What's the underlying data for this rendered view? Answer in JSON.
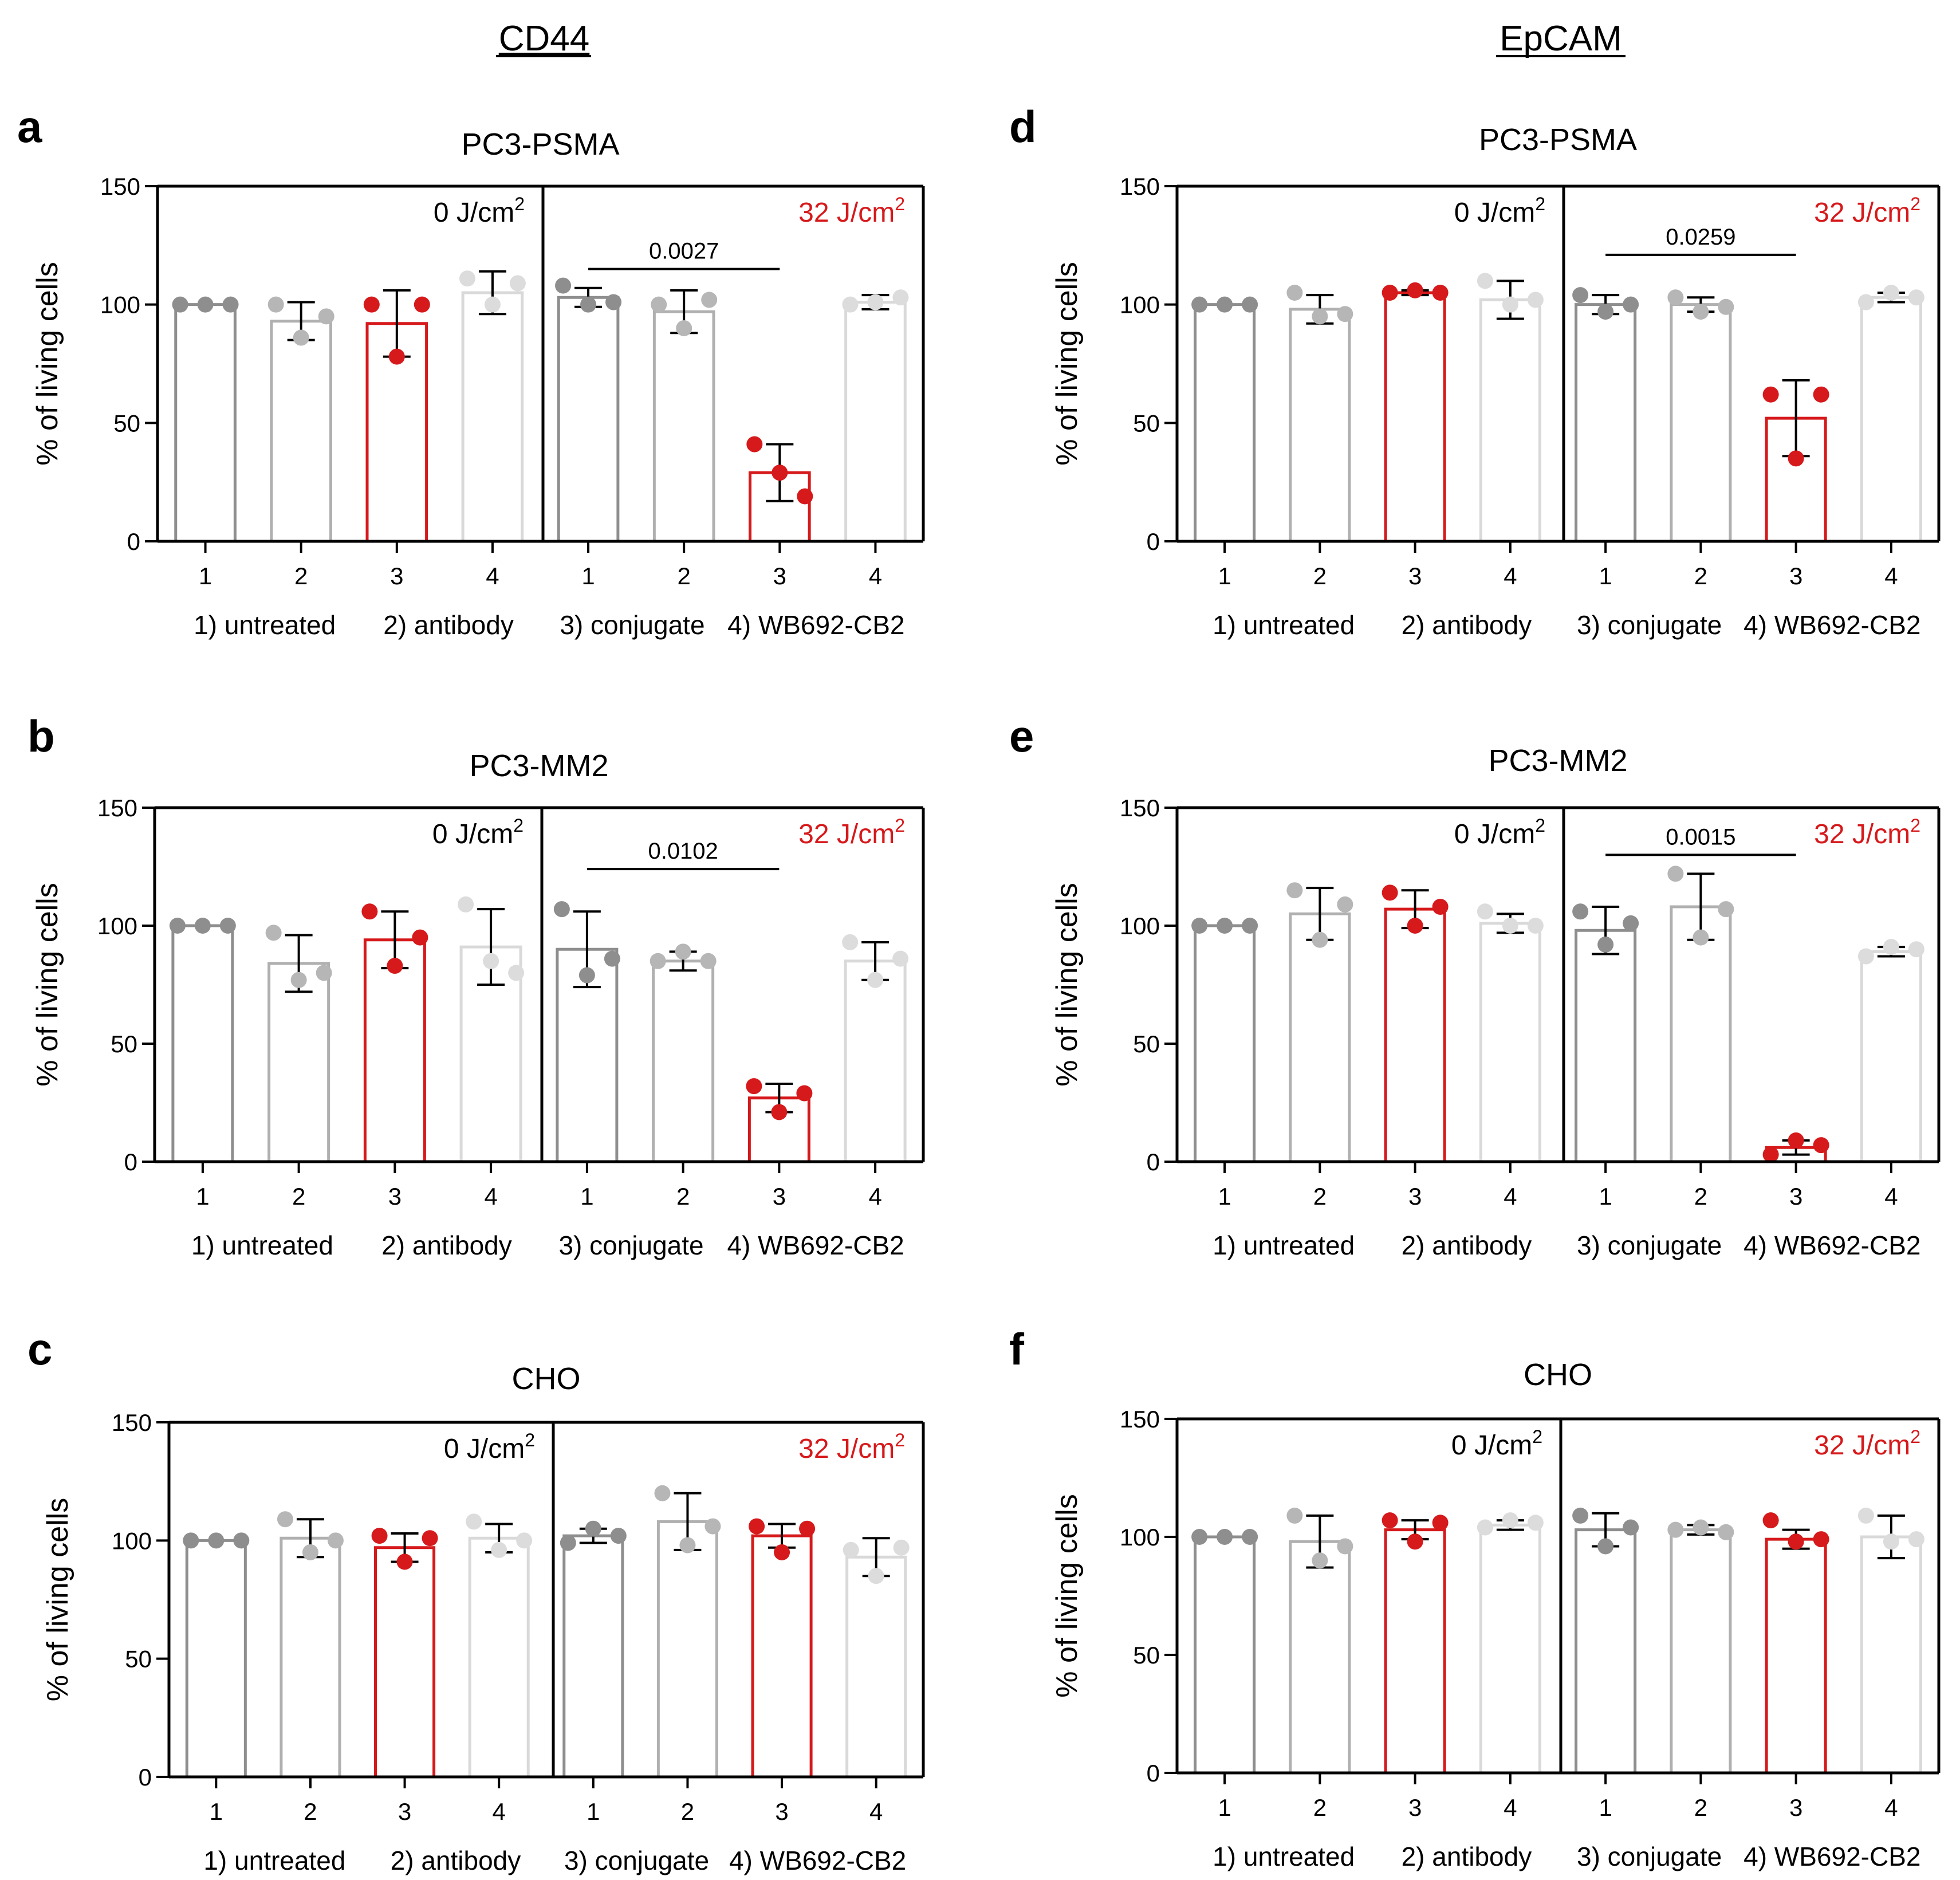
{
  "figure": {
    "column_headers": [
      "CD44",
      "EpCAM"
    ],
    "x_tick_labels": [
      "1",
      "2",
      "3",
      "4"
    ],
    "legend_text": [
      "1) untreated",
      "2) antibody",
      "3) conjugate",
      "4) WB692-CB2"
    ],
    "superscript": "2"
  },
  "colors": {
    "axis": "#000000",
    "conjugate": "#d6191b",
    "untreated": "#8e8e8e",
    "antibody": "#b0b0b0",
    "wb692": "#d9d9d9"
  },
  "chart_data": [
    {
      "type": "bar",
      "panel": "a",
      "title": "PC3-PSMA",
      "ylabel": "% of living cells",
      "ylim": [
        0,
        150
      ],
      "yticks": [
        0,
        50,
        100,
        150
      ],
      "categories": [
        "1",
        "2",
        "3",
        "4"
      ],
      "groups": [
        {
          "label": "0 J/cm",
          "unit_color": "#000000",
          "means": [
            100,
            93,
            92,
            105
          ],
          "sd": [
            0,
            8,
            14,
            9
          ],
          "points": [
            [
              100,
              100,
              100
            ],
            [
              100,
              86,
              95
            ],
            [
              100,
              78,
              100
            ],
            [
              111,
              100,
              109
            ]
          ]
        },
        {
          "label": "32 J/cm",
          "unit_color": "#d6191b",
          "means": [
            103,
            97,
            29,
            101
          ],
          "sd": [
            4,
            9,
            12,
            3
          ],
          "points": [
            [
              108,
              100,
              101
            ],
            [
              100,
              90,
              102
            ],
            [
              41,
              29,
              19
            ],
            [
              100,
              101,
              103
            ]
          ]
        }
      ],
      "annotation": {
        "text": "0.0027",
        "from_bar": 1,
        "to_bar": 3,
        "y": 115
      }
    },
    {
      "type": "bar",
      "panel": "b",
      "title": "PC3-MM2",
      "ylabel": "% of living cells",
      "ylim": [
        0,
        150
      ],
      "yticks": [
        0,
        50,
        100,
        150
      ],
      "categories": [
        "1",
        "2",
        "3",
        "4"
      ],
      "groups": [
        {
          "label": "0 J/cm",
          "unit_color": "#000000",
          "means": [
            100,
            84,
            94,
            91
          ],
          "sd": [
            0,
            12,
            12,
            16
          ],
          "points": [
            [
              100,
              100,
              100
            ],
            [
              97,
              77,
              80
            ],
            [
              106,
              83,
              95
            ],
            [
              109,
              85,
              80
            ]
          ]
        },
        {
          "label": "32 J/cm",
          "unit_color": "#d6191b",
          "means": [
            90,
            85,
            27,
            85
          ],
          "sd": [
            16,
            4,
            6,
            8
          ],
          "points": [
            [
              107,
              79,
              86
            ],
            [
              85,
              89,
              85
            ],
            [
              32,
              21,
              29
            ],
            [
              93,
              77,
              86
            ]
          ]
        }
      ],
      "annotation": {
        "text": "0.0102",
        "from_bar": 1,
        "to_bar": 3,
        "y": 124
      }
    },
    {
      "type": "bar",
      "panel": "c",
      "title": "CHO",
      "ylabel": "% of living cells",
      "ylim": [
        0,
        150
      ],
      "yticks": [
        0,
        50,
        100,
        150
      ],
      "categories": [
        "1",
        "2",
        "3",
        "4"
      ],
      "groups": [
        {
          "label": "0 J/cm",
          "unit_color": "#000000",
          "means": [
            100,
            101,
            97,
            101
          ],
          "sd": [
            0,
            8,
            6,
            6
          ],
          "points": [
            [
              100,
              100,
              100
            ],
            [
              109,
              95,
              100
            ],
            [
              102,
              91,
              101
            ],
            [
              108,
              96,
              100
            ]
          ]
        },
        {
          "label": "32 J/cm",
          "unit_color": "#d6191b",
          "means": [
            102,
            108,
            102,
            93
          ],
          "sd": [
            3,
            12,
            5,
            8
          ],
          "points": [
            [
              99,
              105,
              102
            ],
            [
              120,
              98,
              106
            ],
            [
              106,
              95,
              105
            ],
            [
              96,
              85,
              97
            ]
          ]
        }
      ]
    },
    {
      "type": "bar",
      "panel": "d",
      "title": "PC3-PSMA",
      "ylabel": "% of living cells",
      "ylim": [
        0,
        150
      ],
      "yticks": [
        0,
        50,
        100,
        150
      ],
      "categories": [
        "1",
        "2",
        "3",
        "4"
      ],
      "groups": [
        {
          "label": "0 J/cm",
          "unit_color": "#000000",
          "means": [
            100,
            98,
            105,
            102
          ],
          "sd": [
            0,
            6,
            1,
            8
          ],
          "points": [
            [
              100,
              100,
              100
            ],
            [
              105,
              95,
              96
            ],
            [
              105,
              106,
              105
            ],
            [
              110,
              100,
              102
            ]
          ]
        },
        {
          "label": "32 J/cm",
          "unit_color": "#d6191b",
          "means": [
            100,
            100,
            52,
            103
          ],
          "sd": [
            4,
            3,
            16,
            2
          ],
          "points": [
            [
              104,
              97,
              100
            ],
            [
              103,
              97,
              99
            ],
            [
              62,
              35,
              62
            ],
            [
              101,
              105,
              103
            ]
          ]
        }
      ],
      "annotation": {
        "text": "0.0259",
        "from_bar": 1,
        "to_bar": 3,
        "y": 121
      }
    },
    {
      "type": "bar",
      "panel": "e",
      "title": "PC3-MM2",
      "ylabel": "% of living cells",
      "ylim": [
        0,
        150
      ],
      "yticks": [
        0,
        50,
        100,
        150
      ],
      "categories": [
        "1",
        "2",
        "3",
        "4"
      ],
      "groups": [
        {
          "label": "0 J/cm",
          "unit_color": "#000000",
          "means": [
            100,
            105,
            107,
            101
          ],
          "sd": [
            0,
            11,
            8,
            4
          ],
          "points": [
            [
              100,
              100,
              100
            ],
            [
              115,
              94,
              109
            ],
            [
              114,
              100,
              108
            ],
            [
              106,
              100,
              100
            ]
          ]
        },
        {
          "label": "32 J/cm",
          "unit_color": "#d6191b",
          "means": [
            98,
            108,
            6,
            89
          ],
          "sd": [
            10,
            14,
            3,
            2
          ],
          "points": [
            [
              106,
              92,
              101
            ],
            [
              122,
              95,
              107
            ],
            [
              3,
              9,
              7
            ],
            [
              87,
              91,
              90
            ]
          ]
        }
      ],
      "annotation": {
        "text": "0.0015",
        "from_bar": 1,
        "to_bar": 3,
        "y": 130
      }
    },
    {
      "type": "bar",
      "panel": "f",
      "title": "CHO",
      "ylabel": "% of living cells",
      "ylim": [
        0,
        150
      ],
      "yticks": [
        0,
        50,
        100,
        150
      ],
      "categories": [
        "1",
        "2",
        "3",
        "4"
      ],
      "groups": [
        {
          "label": "0 J/cm",
          "unit_color": "#000000",
          "means": [
            100,
            98,
            103,
            105
          ],
          "sd": [
            0,
            11,
            4,
            2
          ],
          "points": [
            [
              100,
              100,
              100
            ],
            [
              109,
              90,
              96
            ],
            [
              107,
              98,
              106
            ],
            [
              104,
              107,
              106
            ]
          ]
        },
        {
          "label": "32 J/cm",
          "unit_color": "#d6191b",
          "means": [
            103,
            103,
            99,
            100
          ],
          "sd": [
            7,
            2,
            4,
            9
          ],
          "points": [
            [
              109,
              96,
              104
            ],
            [
              103,
              104,
              102
            ],
            [
              107,
              98,
              99
            ],
            [
              109,
              98,
              99
            ]
          ]
        }
      ]
    }
  ]
}
